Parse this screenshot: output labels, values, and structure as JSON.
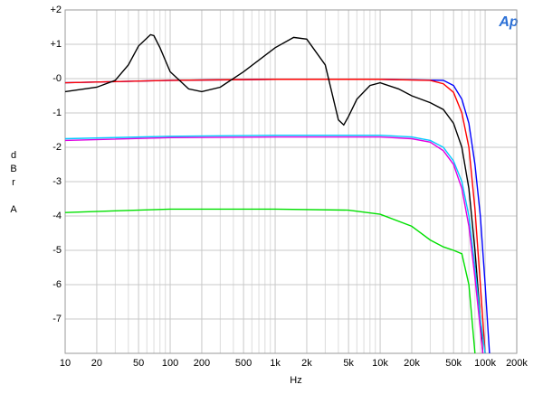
{
  "chart_data": {
    "type": "line",
    "log_x": true,
    "grid": true,
    "x_label": "Hz",
    "y_label": [
      "d",
      "B",
      "r",
      "A"
    ],
    "logo": "Ap",
    "xlim": [
      10,
      200000
    ],
    "ylim": [
      -8,
      2
    ],
    "xticks": [
      10,
      20,
      50,
      100,
      200,
      500,
      {
        "value": 1000,
        "label": "1k"
      },
      {
        "value": 2000,
        "label": "2k"
      },
      {
        "value": 5000,
        "label": "5k"
      },
      {
        "value": 10000,
        "label": "10k"
      },
      {
        "value": 20000,
        "label": "20k"
      },
      {
        "value": 50000,
        "label": "50k"
      },
      {
        "value": 100000,
        "label": "100k"
      },
      {
        "value": 200000,
        "label": "200k"
      }
    ],
    "yticks": [
      {
        "value": 2,
        "label": "+2"
      },
      {
        "value": 1,
        "label": "+1"
      },
      {
        "value": 0,
        "label": "-0"
      },
      -1,
      -2,
      -3,
      -4,
      -5,
      -6,
      -7
    ],
    "series": [
      {
        "color": "#0000ff",
        "x": [
          10,
          100,
          1000,
          10000,
          40000,
          50000,
          60000,
          70000,
          80000,
          90000,
          100000,
          110000
        ],
        "values": [
          -0.12,
          -0.05,
          -0.02,
          -0.02,
          -0.05,
          -0.2,
          -0.6,
          -1.3,
          -2.5,
          -4,
          -6,
          -8
        ]
      },
      {
        "color": "#ff0000",
        "x": [
          10,
          100,
          1000,
          10000,
          30000,
          40000,
          50000,
          60000,
          70000,
          80000,
          90000,
          100000
        ],
        "values": [
          -0.12,
          -0.05,
          -0.02,
          -0.02,
          -0.05,
          -0.15,
          -0.4,
          -1.0,
          -2.0,
          -3.8,
          -6,
          -8
        ]
      },
      {
        "color": "#000000",
        "x": [
          10,
          20,
          30,
          40,
          50,
          65,
          70,
          80,
          100,
          150,
          200,
          300,
          500,
          1000,
          1500,
          2000,
          3000,
          4000,
          4500,
          5000,
          6000,
          8000,
          10000,
          15000,
          20000,
          30000,
          40000,
          50000,
          60000,
          70000,
          80000,
          90000,
          95000
        ],
        "values": [
          -0.38,
          -0.25,
          -0.05,
          0.4,
          0.95,
          1.28,
          1.25,
          0.9,
          0.2,
          -0.3,
          -0.38,
          -0.25,
          0.2,
          0.9,
          1.2,
          1.15,
          0.4,
          -1.2,
          -1.35,
          -1.1,
          -0.6,
          -0.2,
          -0.12,
          -0.3,
          -0.5,
          -0.7,
          -0.9,
          -1.3,
          -2.0,
          -3.2,
          -5,
          -7,
          -8
        ]
      },
      {
        "color": "#00c8ff",
        "x": [
          10,
          100,
          1000,
          10000,
          20000,
          30000,
          40000,
          50000,
          60000,
          70000,
          80000,
          90000,
          100000
        ],
        "values": [
          -1.75,
          -1.68,
          -1.65,
          -1.65,
          -1.7,
          -1.8,
          -2.0,
          -2.4,
          -3.0,
          -4.0,
          -5.5,
          -7,
          -8
        ]
      },
      {
        "color": "#e000e0",
        "x": [
          10,
          100,
          1000,
          10000,
          20000,
          30000,
          40000,
          50000,
          60000,
          70000,
          80000,
          90000,
          95000
        ],
        "values": [
          -1.8,
          -1.72,
          -1.7,
          -1.7,
          -1.75,
          -1.85,
          -2.1,
          -2.5,
          -3.2,
          -4.3,
          -5.8,
          -7.3,
          -8
        ]
      },
      {
        "color": "#00e000",
        "x": [
          10,
          30,
          100,
          1000,
          5000,
          10000,
          20000,
          30000,
          40000,
          50000,
          60000,
          70000,
          80000
        ],
        "values": [
          -3.9,
          -3.85,
          -3.8,
          -3.8,
          -3.83,
          -3.95,
          -4.3,
          -4.7,
          -4.9,
          -5.0,
          -5.1,
          -6.0,
          -8
        ]
      }
    ]
  }
}
